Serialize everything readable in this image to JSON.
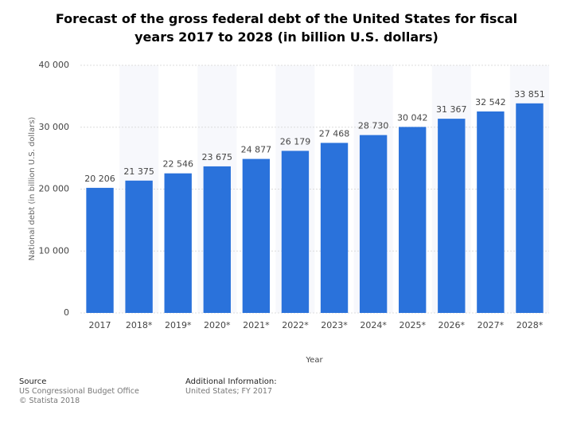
{
  "chart_data": {
    "type": "bar",
    "title": "Forecast of the gross federal debt of the United States for fiscal years 2017 to 2028 (in billion U.S. dollars)",
    "x_label": "Year",
    "y_label": "National debt (in billion U.S. dollars)",
    "categories": [
      "2017",
      "2018*",
      "2019*",
      "2020*",
      "2021*",
      "2022*",
      "2023*",
      "2024*",
      "2025*",
      "2026*",
      "2027*",
      "2028*"
    ],
    "values": [
      20206,
      21375,
      22546,
      23675,
      24877,
      26179,
      27468,
      28730,
      30042,
      31367,
      32542,
      33851
    ],
    "value_labels": [
      "20 206",
      "21 375",
      "22 546",
      "23 675",
      "24 877",
      "26 179",
      "27 468",
      "28 730",
      "30 042",
      "31 367",
      "32 542",
      "33 851"
    ],
    "color": "#2a72db",
    "ylim": [
      0,
      40000
    ],
    "yticks": [
      0,
      {
        "value": 10000,
        "label": "10 000"
      },
      {
        "value": 20000,
        "label": "20 000"
      },
      {
        "value": 30000,
        "label": "30 000"
      },
      {
        "value": 40000,
        "label": "40 000"
      }
    ],
    "grid": true
  },
  "footer": {
    "source_heading": "Source",
    "source": "US Congressional Budget Office",
    "copyright": "© Statista 2018",
    "info_heading": "Additional Information:",
    "info": "United States; FY 2017"
  }
}
